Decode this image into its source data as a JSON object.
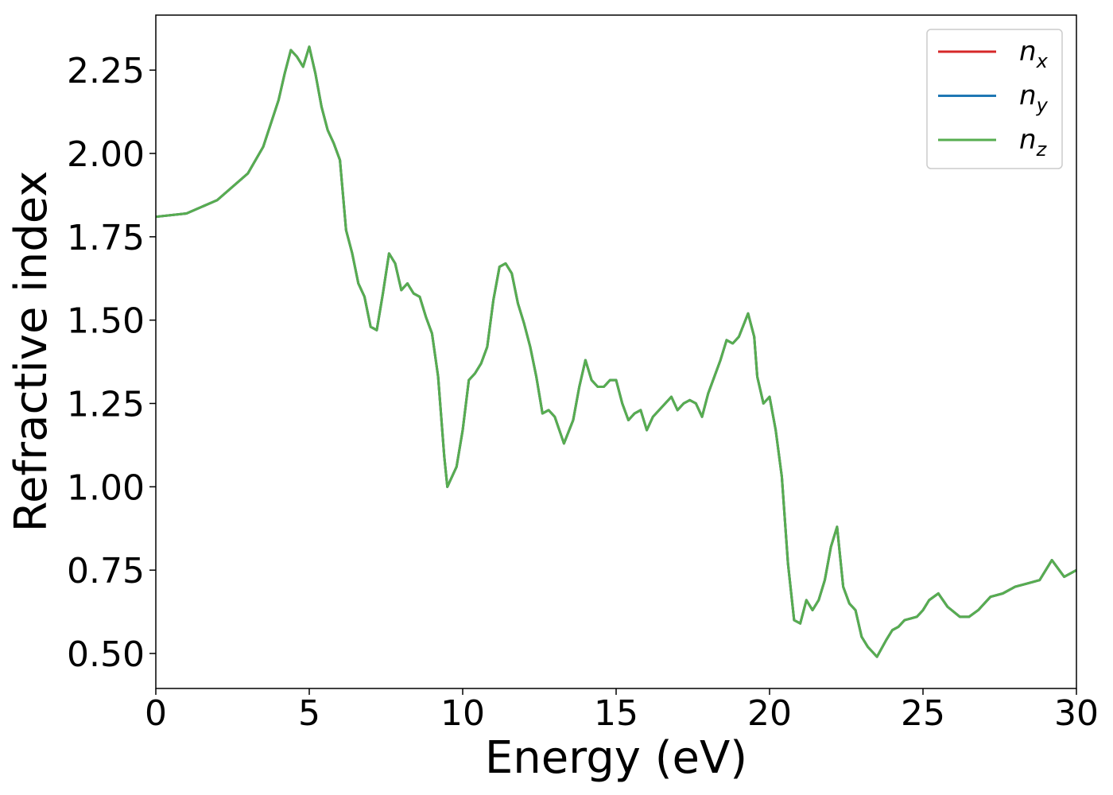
{
  "chart_data": {
    "type": "line",
    "xlabel": "Energy (eV)",
    "ylabel": "Refractive index",
    "x": [
      0,
      1,
      2,
      3,
      3.5,
      4,
      4.2,
      4.4,
      4.6,
      4.8,
      5.0,
      5.2,
      5.4,
      5.6,
      5.8,
      6.0,
      6.2,
      6.4,
      6.6,
      6.8,
      7.0,
      7.2,
      7.4,
      7.6,
      7.8,
      8.0,
      8.2,
      8.4,
      8.6,
      8.8,
      9.0,
      9.2,
      9.4,
      9.5,
      9.8,
      10.0,
      10.2,
      10.4,
      10.6,
      10.8,
      11.0,
      11.2,
      11.4,
      11.6,
      11.8,
      12.0,
      12.2,
      12.4,
      12.6,
      12.8,
      13.0,
      13.3,
      13.6,
      13.8,
      14.0,
      14.2,
      14.4,
      14.6,
      14.8,
      15.0,
      15.2,
      15.4,
      15.6,
      15.8,
      16.0,
      16.2,
      16.4,
      16.6,
      16.8,
      17.0,
      17.2,
      17.4,
      17.6,
      17.8,
      18.0,
      18.2,
      18.4,
      18.6,
      18.8,
      19.0,
      19.3,
      19.5,
      19.6,
      19.8,
      20.0,
      20.2,
      20.4,
      20.6,
      20.8,
      21.0,
      21.2,
      21.4,
      21.6,
      21.8,
      22.0,
      22.2,
      22.4,
      22.6,
      22.8,
      23.0,
      23.2,
      23.5,
      23.8,
      24.0,
      24.2,
      24.4,
      24.8,
      25.0,
      25.2,
      25.5,
      25.8,
      26.2,
      26.5,
      26.8,
      27.2,
      27.6,
      28.0,
      28.4,
      28.8,
      29.2,
      29.6,
      30.0
    ],
    "series": [
      {
        "name": "n_x",
        "color": "#d62728",
        "values": [
          1.81,
          1.82,
          1.86,
          1.94,
          2.02,
          2.16,
          2.24,
          2.31,
          2.29,
          2.26,
          2.32,
          2.24,
          2.14,
          2.07,
          2.03,
          1.98,
          1.77,
          1.7,
          1.61,
          1.57,
          1.48,
          1.47,
          1.58,
          1.7,
          1.67,
          1.59,
          1.61,
          1.58,
          1.57,
          1.51,
          1.46,
          1.33,
          1.09,
          1.0,
          1.06,
          1.17,
          1.32,
          1.34,
          1.37,
          1.42,
          1.56,
          1.66,
          1.67,
          1.64,
          1.55,
          1.49,
          1.42,
          1.33,
          1.22,
          1.23,
          1.21,
          1.13,
          1.2,
          1.3,
          1.38,
          1.32,
          1.3,
          1.3,
          1.32,
          1.32,
          1.25,
          1.2,
          1.22,
          1.23,
          1.17,
          1.21,
          1.23,
          1.25,
          1.27,
          1.23,
          1.25,
          1.26,
          1.25,
          1.21,
          1.28,
          1.33,
          1.38,
          1.44,
          1.43,
          1.45,
          1.52,
          1.45,
          1.33,
          1.25,
          1.27,
          1.17,
          1.03,
          0.77,
          0.6,
          0.59,
          0.66,
          0.63,
          0.66,
          0.72,
          0.82,
          0.88,
          0.7,
          0.65,
          0.63,
          0.55,
          0.52,
          0.49,
          0.54,
          0.57,
          0.58,
          0.6,
          0.61,
          0.63,
          0.66,
          0.68,
          0.64,
          0.61,
          0.61,
          0.63,
          0.67,
          0.68,
          0.7,
          0.71,
          0.72,
          0.78,
          0.73,
          0.75
        ]
      },
      {
        "name": "n_y",
        "color": "#1f77b4",
        "values": [
          1.81,
          1.82,
          1.86,
          1.94,
          2.02,
          2.16,
          2.24,
          2.31,
          2.29,
          2.26,
          2.32,
          2.24,
          2.14,
          2.07,
          2.03,
          1.98,
          1.77,
          1.7,
          1.61,
          1.57,
          1.48,
          1.47,
          1.58,
          1.7,
          1.67,
          1.59,
          1.61,
          1.58,
          1.57,
          1.51,
          1.46,
          1.33,
          1.09,
          1.0,
          1.06,
          1.17,
          1.32,
          1.34,
          1.37,
          1.42,
          1.56,
          1.66,
          1.67,
          1.64,
          1.55,
          1.49,
          1.42,
          1.33,
          1.22,
          1.23,
          1.21,
          1.13,
          1.2,
          1.3,
          1.38,
          1.32,
          1.3,
          1.3,
          1.32,
          1.32,
          1.25,
          1.2,
          1.22,
          1.23,
          1.17,
          1.21,
          1.23,
          1.25,
          1.27,
          1.23,
          1.25,
          1.26,
          1.25,
          1.21,
          1.28,
          1.33,
          1.38,
          1.44,
          1.43,
          1.45,
          1.52,
          1.45,
          1.33,
          1.25,
          1.27,
          1.17,
          1.03,
          0.77,
          0.6,
          0.59,
          0.66,
          0.63,
          0.66,
          0.72,
          0.82,
          0.88,
          0.7,
          0.65,
          0.63,
          0.55,
          0.52,
          0.49,
          0.54,
          0.57,
          0.58,
          0.6,
          0.61,
          0.63,
          0.66,
          0.68,
          0.64,
          0.61,
          0.61,
          0.63,
          0.67,
          0.68,
          0.7,
          0.71,
          0.72,
          0.78,
          0.73,
          0.75
        ]
      },
      {
        "name": "n_z",
        "color": "#57ad50",
        "values": [
          1.81,
          1.82,
          1.86,
          1.94,
          2.02,
          2.16,
          2.24,
          2.31,
          2.29,
          2.26,
          2.32,
          2.24,
          2.14,
          2.07,
          2.03,
          1.98,
          1.77,
          1.7,
          1.61,
          1.57,
          1.48,
          1.47,
          1.58,
          1.7,
          1.67,
          1.59,
          1.61,
          1.58,
          1.57,
          1.51,
          1.46,
          1.33,
          1.09,
          1.0,
          1.06,
          1.17,
          1.32,
          1.34,
          1.37,
          1.42,
          1.56,
          1.66,
          1.67,
          1.64,
          1.55,
          1.49,
          1.42,
          1.33,
          1.22,
          1.23,
          1.21,
          1.13,
          1.2,
          1.3,
          1.38,
          1.32,
          1.3,
          1.3,
          1.32,
          1.32,
          1.25,
          1.2,
          1.22,
          1.23,
          1.17,
          1.21,
          1.23,
          1.25,
          1.27,
          1.23,
          1.25,
          1.26,
          1.25,
          1.21,
          1.28,
          1.33,
          1.38,
          1.44,
          1.43,
          1.45,
          1.52,
          1.45,
          1.33,
          1.25,
          1.27,
          1.17,
          1.03,
          0.77,
          0.6,
          0.59,
          0.66,
          0.63,
          0.66,
          0.72,
          0.82,
          0.88,
          0.7,
          0.65,
          0.63,
          0.55,
          0.52,
          0.49,
          0.54,
          0.57,
          0.58,
          0.6,
          0.61,
          0.63,
          0.66,
          0.68,
          0.64,
          0.61,
          0.61,
          0.63,
          0.67,
          0.68,
          0.7,
          0.71,
          0.72,
          0.78,
          0.73,
          0.75
        ]
      }
    ],
    "xlim": [
      0,
      30
    ],
    "xticks": [
      0,
      5,
      10,
      15,
      20,
      25,
      30
    ],
    "ylim": [
      0.395,
      2.415
    ],
    "yticks": [
      {
        "value": 0.5,
        "label": "0.50"
      },
      {
        "value": 0.75,
        "label": "0.75"
      },
      {
        "value": 1.0,
        "label": "1.00"
      },
      {
        "value": 1.25,
        "label": "1.25"
      },
      {
        "value": 1.5,
        "label": "1.50"
      },
      {
        "value": 1.75,
        "label": "1.75"
      },
      {
        "value": 2.0,
        "label": "2.00"
      },
      {
        "value": 2.25,
        "label": "2.25"
      }
    ],
    "grid": false,
    "legend": "upper right"
  }
}
